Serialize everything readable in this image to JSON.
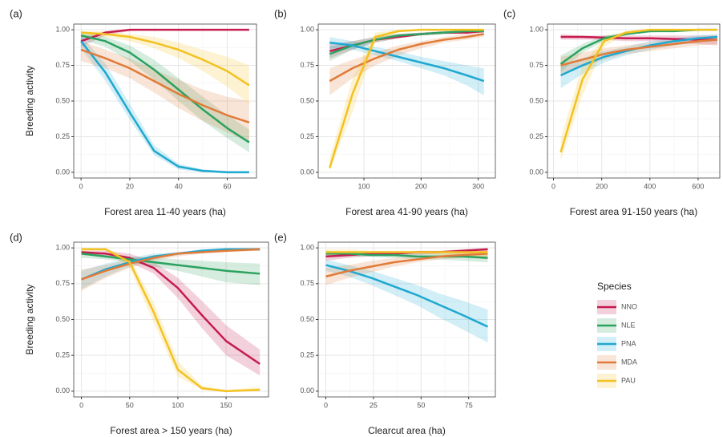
{
  "legend": {
    "title": "Species"
  },
  "chart_data": [
    {
      "type": "line",
      "label": "(a)",
      "xlabel": "Forest area 11-40 years (ha)",
      "ylabel": "Breeding activity",
      "xlim": [
        -3,
        72
      ],
      "xticks": [
        0,
        20,
        40,
        60
      ],
      "ylim": [
        -0.04,
        1.04
      ],
      "yticks": [
        {
          "value": 0,
          "label": "0.00"
        },
        {
          "value": 0.25,
          "label": "0.25"
        },
        {
          "value": 0.5,
          "label": "0.50"
        },
        {
          "value": 0.75,
          "label": "0.75"
        },
        {
          "value": 1,
          "label": "1.00"
        }
      ],
      "grid": true,
      "x": [
        0,
        10,
        20,
        30,
        40,
        50,
        60,
        69
      ],
      "series": [
        {
          "name": "NNO",
          "color": "#c51b4f",
          "values": [
            0.92,
            0.98,
            1,
            1,
            1,
            1,
            1,
            1
          ],
          "lower": [
            0.88,
            0.96,
            0.99,
            1,
            1,
            1,
            1,
            1
          ],
          "upper": [
            0.95,
            0.99,
            1,
            1,
            1,
            1,
            1,
            1
          ]
        },
        {
          "name": "NLE",
          "color": "#2ca25f",
          "values": [
            0.96,
            0.92,
            0.84,
            0.72,
            0.58,
            0.44,
            0.31,
            0.21
          ],
          "lower": [
            0.93,
            0.88,
            0.78,
            0.65,
            0.5,
            0.36,
            0.24,
            0.14
          ],
          "upper": [
            0.98,
            0.95,
            0.89,
            0.79,
            0.66,
            0.53,
            0.4,
            0.3
          ]
        },
        {
          "name": "PNA",
          "color": "#1fa8d0",
          "values": [
            0.92,
            0.7,
            0.42,
            0.15,
            0.04,
            0.01,
            0,
            0
          ],
          "lower": [
            0.87,
            0.64,
            0.37,
            0.12,
            0.02,
            0,
            0,
            0
          ],
          "upper": [
            0.96,
            0.76,
            0.48,
            0.19,
            0.06,
            0.02,
            0.01,
            0.01
          ]
        },
        {
          "name": "MDA",
          "color": "#e07b39",
          "values": [
            0.86,
            0.8,
            0.73,
            0.64,
            0.55,
            0.47,
            0.4,
            0.35
          ],
          "lower": [
            0.78,
            0.73,
            0.66,
            0.56,
            0.45,
            0.36,
            0.28,
            0.21
          ],
          "upper": [
            0.92,
            0.86,
            0.8,
            0.72,
            0.65,
            0.58,
            0.53,
            0.5
          ]
        },
        {
          "name": "PAU",
          "color": "#f3c221",
          "values": [
            0.98,
            0.97,
            0.95,
            0.91,
            0.86,
            0.79,
            0.71,
            0.61
          ],
          "lower": [
            0.96,
            0.95,
            0.92,
            0.87,
            0.8,
            0.71,
            0.6,
            0.48
          ],
          "upper": [
            0.99,
            0.99,
            0.97,
            0.95,
            0.91,
            0.86,
            0.81,
            0.75
          ]
        }
      ]
    },
    {
      "type": "line",
      "label": "(b)",
      "xlabel": "Forest area 41-90 years (ha)",
      "xlim": [
        20,
        330
      ],
      "xticks": [
        100,
        200,
        300
      ],
      "ylim": [
        -0.04,
        1.04
      ],
      "yticks": [
        {
          "value": 0,
          "label": "0.00"
        },
        {
          "value": 0.25,
          "label": "0.25"
        },
        {
          "value": 0.5,
          "label": "0.50"
        },
        {
          "value": 0.75,
          "label": "0.75"
        },
        {
          "value": 1,
          "label": "1.00"
        }
      ],
      "grid": true,
      "x": [
        40,
        80,
        120,
        160,
        200,
        240,
        280,
        310
      ],
      "series": [
        {
          "name": "NNO",
          "color": "#c51b4f",
          "values": [
            0.85,
            0.89,
            0.93,
            0.95,
            0.97,
            0.98,
            0.98,
            0.99
          ],
          "lower": [
            0.8,
            0.86,
            0.91,
            0.94,
            0.96,
            0.97,
            0.97,
            0.98
          ],
          "upper": [
            0.9,
            0.92,
            0.95,
            0.97,
            0.98,
            0.99,
            0.99,
            1
          ]
        },
        {
          "name": "NLE",
          "color": "#2ca25f",
          "values": [
            0.83,
            0.89,
            0.93,
            0.96,
            0.97,
            0.98,
            0.99,
            0.99
          ],
          "lower": [
            0.78,
            0.86,
            0.91,
            0.94,
            0.96,
            0.97,
            0.98,
            0.98
          ],
          "upper": [
            0.88,
            0.92,
            0.95,
            0.97,
            0.98,
            0.99,
            1,
            1
          ]
        },
        {
          "name": "PNA",
          "color": "#1fa8d0",
          "values": [
            0.91,
            0.89,
            0.85,
            0.81,
            0.77,
            0.73,
            0.68,
            0.64
          ],
          "lower": [
            0.87,
            0.86,
            0.82,
            0.78,
            0.73,
            0.68,
            0.61,
            0.54
          ],
          "upper": [
            0.95,
            0.92,
            0.88,
            0.85,
            0.81,
            0.78,
            0.75,
            0.73
          ]
        },
        {
          "name": "MDA",
          "color": "#e07b39",
          "values": [
            0.64,
            0.73,
            0.8,
            0.86,
            0.9,
            0.93,
            0.95,
            0.97
          ],
          "lower": [
            0.54,
            0.66,
            0.75,
            0.82,
            0.87,
            0.91,
            0.93,
            0.95
          ],
          "upper": [
            0.73,
            0.79,
            0.84,
            0.89,
            0.92,
            0.95,
            0.97,
            0.98
          ]
        },
        {
          "name": "PAU",
          "color": "#f3c221",
          "values": [
            0.03,
            0.55,
            0.95,
            0.99,
            1,
            1,
            1,
            1
          ],
          "lower": [
            0.01,
            0.42,
            0.91,
            0.98,
            1,
            1,
            1,
            1
          ],
          "upper": [
            0.1,
            0.66,
            0.98,
            1,
            1,
            1,
            1,
            1
          ]
        }
      ]
    },
    {
      "type": "line",
      "label": "(c)",
      "xlabel": "Forest area 91-150 years (ha)",
      "xlim": [
        -25,
        690
      ],
      "xticks": [
        0,
        200,
        400,
        600
      ],
      "ylim": [
        -0.04,
        1.04
      ],
      "yticks": [
        {
          "value": 0,
          "label": "0.00"
        },
        {
          "value": 0.25,
          "label": "0.25"
        },
        {
          "value": 0.5,
          "label": "0.50"
        },
        {
          "value": 0.75,
          "label": "0.75"
        },
        {
          "value": 1,
          "label": "1.00"
        }
      ],
      "grid": true,
      "x": [
        30,
        120,
        210,
        300,
        400,
        500,
        600,
        680
      ],
      "series": [
        {
          "name": "NNO",
          "color": "#c51b4f",
          "values": [
            0.95,
            0.95,
            0.945,
            0.94,
            0.94,
            0.935,
            0.93,
            0.93
          ],
          "lower": [
            0.93,
            0.93,
            0.93,
            0.92,
            0.92,
            0.91,
            0.9,
            0.89
          ],
          "upper": [
            0.97,
            0.96,
            0.96,
            0.96,
            0.96,
            0.96,
            0.96,
            0.96
          ]
        },
        {
          "name": "NLE",
          "color": "#2ca25f",
          "values": [
            0.76,
            0.87,
            0.94,
            0.97,
            0.99,
            0.99,
            1,
            1
          ],
          "lower": [
            0.7,
            0.84,
            0.92,
            0.96,
            0.98,
            0.99,
            0.99,
            1
          ],
          "upper": [
            0.82,
            0.9,
            0.96,
            0.98,
            1,
            1,
            1,
            1
          ]
        },
        {
          "name": "PNA",
          "color": "#1fa8d0",
          "values": [
            0.68,
            0.75,
            0.81,
            0.85,
            0.89,
            0.92,
            0.94,
            0.95
          ],
          "lower": [
            0.59,
            0.69,
            0.77,
            0.82,
            0.86,
            0.89,
            0.91,
            0.92
          ],
          "upper": [
            0.76,
            0.8,
            0.85,
            0.88,
            0.92,
            0.94,
            0.96,
            0.97
          ]
        },
        {
          "name": "MDA",
          "color": "#e07b39",
          "values": [
            0.75,
            0.79,
            0.83,
            0.86,
            0.88,
            0.9,
            0.92,
            0.93
          ],
          "lower": [
            0.68,
            0.74,
            0.79,
            0.83,
            0.85,
            0.87,
            0.89,
            0.9
          ],
          "upper": [
            0.81,
            0.84,
            0.87,
            0.89,
            0.91,
            0.93,
            0.95,
            0.96
          ]
        },
        {
          "name": "PAU",
          "color": "#f3c221",
          "values": [
            0.14,
            0.65,
            0.92,
            0.98,
            1,
            1,
            1,
            1
          ],
          "lower": [
            0.08,
            0.54,
            0.88,
            0.97,
            0.99,
            1,
            1,
            1
          ],
          "upper": [
            0.24,
            0.75,
            0.95,
            0.99,
            1,
            1,
            1,
            1
          ]
        }
      ]
    },
    {
      "type": "line",
      "label": "(d)",
      "xlabel": "Forest area > 150 years (ha)",
      "ylabel": "Breeding activity",
      "xlim": [
        -8,
        194
      ],
      "xticks": [
        0,
        50,
        100,
        150
      ],
      "ylim": [
        -0.04,
        1.04
      ],
      "yticks": [
        {
          "value": 0,
          "label": "0.00"
        },
        {
          "value": 0.25,
          "label": "0.25"
        },
        {
          "value": 0.5,
          "label": "0.50"
        },
        {
          "value": 0.75,
          "label": "0.75"
        },
        {
          "value": 1,
          "label": "1.00"
        }
      ],
      "grid": true,
      "x": [
        0,
        25,
        50,
        75,
        100,
        125,
        150,
        185
      ],
      "series": [
        {
          "name": "NNO",
          "color": "#c51b4f",
          "values": [
            0.97,
            0.96,
            0.93,
            0.86,
            0.72,
            0.53,
            0.35,
            0.19
          ],
          "lower": [
            0.95,
            0.94,
            0.9,
            0.82,
            0.65,
            0.44,
            0.25,
            0.11
          ],
          "upper": [
            0.98,
            0.98,
            0.96,
            0.9,
            0.79,
            0.63,
            0.46,
            0.29
          ]
        },
        {
          "name": "NLE",
          "color": "#2ca25f",
          "values": [
            0.96,
            0.94,
            0.92,
            0.9,
            0.88,
            0.86,
            0.84,
            0.82
          ],
          "lower": [
            0.93,
            0.92,
            0.9,
            0.87,
            0.84,
            0.8,
            0.76,
            0.74
          ],
          "upper": [
            0.98,
            0.96,
            0.94,
            0.93,
            0.92,
            0.91,
            0.9,
            0.89
          ]
        },
        {
          "name": "PNA",
          "color": "#1fa8d0",
          "values": [
            0.78,
            0.85,
            0.9,
            0.94,
            0.96,
            0.98,
            0.99,
            0.99
          ],
          "lower": [
            0.71,
            0.8,
            0.87,
            0.92,
            0.95,
            0.97,
            0.98,
            0.98
          ],
          "upper": [
            0.84,
            0.89,
            0.93,
            0.96,
            0.97,
            0.99,
            1,
            1
          ]
        },
        {
          "name": "MDA",
          "color": "#e07b39",
          "values": [
            0.78,
            0.84,
            0.89,
            0.93,
            0.96,
            0.97,
            0.98,
            0.99
          ],
          "lower": [
            0.7,
            0.79,
            0.86,
            0.91,
            0.94,
            0.96,
            0.97,
            0.98
          ],
          "upper": [
            0.85,
            0.88,
            0.92,
            0.95,
            0.97,
            0.98,
            0.99,
            1
          ]
        },
        {
          "name": "PAU",
          "color": "#f3c221",
          "values": [
            0.99,
            0.99,
            0.9,
            0.55,
            0.15,
            0.02,
            0,
            0.01
          ],
          "lower": [
            0.98,
            0.98,
            0.86,
            0.48,
            0.1,
            0.01,
            0,
            0
          ],
          "upper": [
            1,
            1,
            0.93,
            0.62,
            0.21,
            0.04,
            0.01,
            0.03
          ]
        }
      ]
    },
    {
      "type": "line",
      "label": "(e)",
      "xlabel": "Clearcut area (ha)",
      "xlim": [
        -4,
        89
      ],
      "xticks": [
        0,
        25,
        50,
        75
      ],
      "ylim": [
        -0.04,
        1.04
      ],
      "yticks": [
        {
          "value": 0,
          "label": "0.00"
        },
        {
          "value": 0.25,
          "label": "0.25"
        },
        {
          "value": 0.5,
          "label": "0.50"
        },
        {
          "value": 0.75,
          "label": "0.75"
        },
        {
          "value": 1,
          "label": "1.00"
        }
      ],
      "grid": true,
      "x": [
        0,
        12,
        24,
        36,
        48,
        60,
        72,
        85
      ],
      "series": [
        {
          "name": "NNO",
          "color": "#c51b4f",
          "values": [
            0.94,
            0.95,
            0.96,
            0.96,
            0.97,
            0.97,
            0.98,
            0.99
          ],
          "lower": [
            0.91,
            0.93,
            0.94,
            0.95,
            0.95,
            0.96,
            0.96,
            0.97
          ],
          "upper": [
            0.97,
            0.97,
            0.97,
            0.97,
            0.98,
            0.98,
            0.99,
            1
          ]
        },
        {
          "name": "NLE",
          "color": "#2ca25f",
          "values": [
            0.96,
            0.96,
            0.95,
            0.95,
            0.94,
            0.94,
            0.94,
            0.93
          ],
          "lower": [
            0.94,
            0.94,
            0.94,
            0.93,
            0.92,
            0.92,
            0.91,
            0.9
          ],
          "upper": [
            0.98,
            0.97,
            0.97,
            0.97,
            0.96,
            0.96,
            0.96,
            0.96
          ]
        },
        {
          "name": "PNA",
          "color": "#1fa8d0",
          "values": [
            0.88,
            0.84,
            0.79,
            0.73,
            0.67,
            0.6,
            0.53,
            0.45
          ],
          "lower": [
            0.84,
            0.8,
            0.74,
            0.67,
            0.6,
            0.51,
            0.43,
            0.34
          ],
          "upper": [
            0.92,
            0.88,
            0.84,
            0.79,
            0.74,
            0.68,
            0.63,
            0.57
          ]
        },
        {
          "name": "MDA",
          "color": "#e07b39",
          "values": [
            0.8,
            0.84,
            0.87,
            0.9,
            0.92,
            0.94,
            0.95,
            0.96
          ],
          "lower": [
            0.74,
            0.79,
            0.83,
            0.87,
            0.9,
            0.92,
            0.93,
            0.94
          ],
          "upper": [
            0.86,
            0.88,
            0.91,
            0.93,
            0.94,
            0.95,
            0.97,
            0.98
          ]
        },
        {
          "name": "PAU",
          "color": "#f3c221",
          "values": [
            0.97,
            0.97,
            0.97,
            0.97,
            0.97,
            0.97,
            0.97,
            0.97
          ],
          "lower": [
            0.95,
            0.95,
            0.96,
            0.96,
            0.96,
            0.95,
            0.94,
            0.92
          ],
          "upper": [
            0.99,
            0.99,
            0.98,
            0.98,
            0.98,
            0.98,
            0.99,
            0.99
          ]
        }
      ]
    }
  ]
}
